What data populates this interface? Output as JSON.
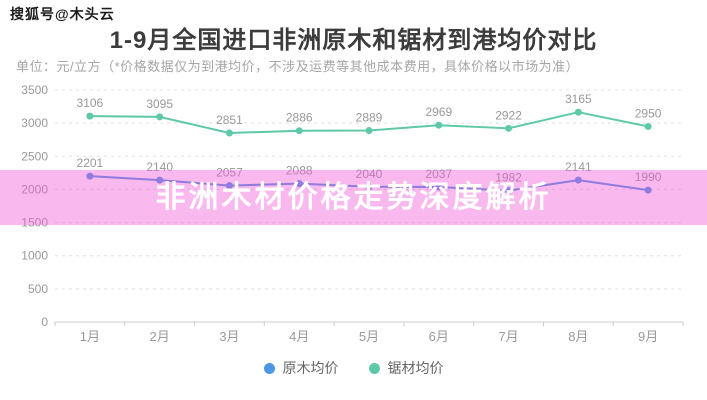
{
  "watermark": "搜狐号@木头云",
  "header": {
    "title": "1-9月全国进口非洲原木和锯材到港均价对比",
    "subtitle": "单位：元/立方（*价格数据仅为到港均价，不涉及运费等其他成本费用，具体价格以市场为准）"
  },
  "banner": {
    "text": "非洲木材价格走势深度解析"
  },
  "colors": {
    "log_series": "#4a97e3",
    "sawn_series": "#5ec9a7",
    "banner_overlay": "rgba(240,85,215,0.42)",
    "grid": "#e0e0e0",
    "axis": "#cccccc",
    "value_label": "#999999",
    "tick_label": "#999999"
  },
  "chart_data": {
    "type": "line",
    "categories": [
      "1月",
      "2月",
      "3月",
      "4月",
      "5月",
      "6月",
      "7月",
      "8月",
      "9月"
    ],
    "series": [
      {
        "key": "log",
        "name": "原木均价",
        "color": "#4a97e3",
        "values": [
          2201,
          2140,
          2057,
          2088,
          2040,
          2037,
          1982,
          2141,
          1990
        ]
      },
      {
        "key": "sawn",
        "name": "锯材均价",
        "color": "#5ec9a7",
        "values": [
          3106,
          3095,
          2851,
          2886,
          2889,
          2969,
          2922,
          3165,
          2950
        ]
      }
    ],
    "ylim": [
      0,
      3500
    ],
    "ytick_step": 500,
    "grid": true,
    "grid_style": "dashed",
    "legend_position": "bottom",
    "title": "1-9月全国进口非洲原木和锯材到港均价对比",
    "xlabel": "",
    "ylabel": "单位：元/立方"
  },
  "legend": [
    {
      "key": "log",
      "label": "原木均价",
      "color": "#4a97e3"
    },
    {
      "key": "sawn",
      "label": "锯材均价",
      "color": "#5ec9a7"
    }
  ]
}
